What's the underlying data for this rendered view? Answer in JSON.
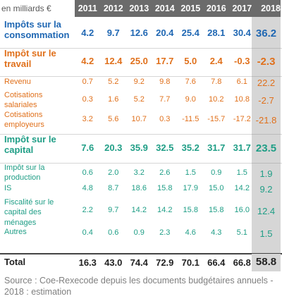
{
  "unit_label": "en milliards €",
  "colors": {
    "consommation": "#1f67b3",
    "travail": "#e0701b",
    "capital": "#1f9e86",
    "total": "#222222",
    "header": "#6b6b6b"
  },
  "chart_data": {
    "type": "table",
    "unit": "en milliards €",
    "columns": [
      "2011",
      "2012",
      "2013",
      "2014",
      "2015",
      "2016",
      "2017",
      "2018"
    ],
    "rows": [
      {
        "label": "Impôts sur la consommation",
        "group": "consommation",
        "level": "major",
        "values": [
          "4.2",
          "9.7",
          "12.6",
          "20.4",
          "25.4",
          "28.1",
          "30.4",
          "36.2"
        ]
      },
      {
        "label": "Impôt sur le travail",
        "group": "travail",
        "level": "major",
        "values": [
          "4.2",
          "12.4",
          "25.0",
          "17.7",
          "5.0",
          "2.4",
          "-0.3",
          "-2.3"
        ]
      },
      {
        "label": "Revenu",
        "group": "travail",
        "level": "minor",
        "values": [
          "0.7",
          "5.2",
          "9.2",
          "9.8",
          "7.6",
          "7.8",
          "6.1",
          "22.2"
        ]
      },
      {
        "label": "Cotisations salariales",
        "group": "travail",
        "level": "minor",
        "values": [
          "0.3",
          "1.6",
          "5.2",
          "7.7",
          "9.0",
          "10.2",
          "10.8",
          "-2.7"
        ]
      },
      {
        "label": "Cotisations employeurs",
        "group": "travail",
        "level": "minor",
        "values": [
          "3.2",
          "5.6",
          "10.7",
          "0.3",
          "-11.5",
          "-15.7",
          "-17.2",
          "-21.8"
        ]
      },
      {
        "label": "Impôt sur le capital",
        "group": "capital",
        "level": "major",
        "values": [
          "7.6",
          "20.3",
          "35.9",
          "32.5",
          "35.2",
          "31.7",
          "31.7",
          "23.5"
        ]
      },
      {
        "label": "Impôt sur la production",
        "group": "capital",
        "level": "minor",
        "values": [
          "0.6",
          "2.0",
          "3.2",
          "2.6",
          "1.5",
          "0.9",
          "1.5",
          "1.9"
        ]
      },
      {
        "label": "IS",
        "group": "capital",
        "level": "minor",
        "values": [
          "4.8",
          "8.7",
          "18.6",
          "15.8",
          "17.9",
          "15.0",
          "14.2",
          "9.2"
        ]
      },
      {
        "label": "Fiscalité sur le capital des ménages",
        "group": "capital",
        "level": "minor",
        "values": [
          "2.2",
          "9.7",
          "14.2",
          "14.2",
          "15.8",
          "15.8",
          "16.0",
          "12.4"
        ]
      },
      {
        "label": "Autres",
        "group": "capital",
        "level": "minor",
        "values": [
          "0.4",
          "0.6",
          "0.9",
          "2.3",
          "4.6",
          "4.3",
          "5.1",
          "1.5"
        ]
      }
    ],
    "total": {
      "label": "Total",
      "values": [
        "16.3",
        "43.0",
        "74.4",
        "72.9",
        "70.1",
        "66.4",
        "66.8",
        "58.8"
      ]
    }
  },
  "source": "Source : Coe-Rexecode depuis les documents budgétaires annuels - 2018 : estimation"
}
